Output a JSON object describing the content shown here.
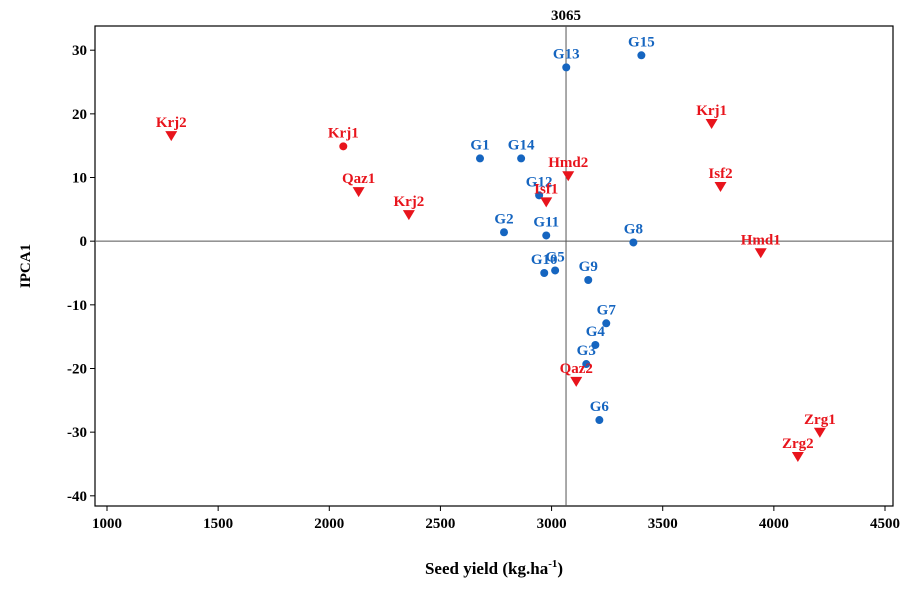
{
  "chart_data": {
    "type": "scatter",
    "xlabel": [
      "Seed yield (kg.ha",
      "-1",
      ")"
    ],
    "ylabel": "IPCA1",
    "xlim": [
      946,
      4536
    ],
    "xticks": [
      1000,
      1500,
      2000,
      2500,
      3000,
      3500,
      4000,
      4500
    ],
    "ylim": [
      -41.6,
      33.8
    ],
    "yticks": [
      -40,
      -30,
      -20,
      -10,
      0,
      10,
      20,
      30
    ],
    "vline": 3065,
    "hline": 0,
    "series": [
      {
        "color": "#1565c0",
        "marker": "circle",
        "labels": [
          "G15",
          "G13",
          "G1",
          "G14",
          "G12",
          "G2",
          "G11",
          "G8",
          "G5",
          "G10",
          "G9",
          "G7",
          "G4",
          "G3",
          "G6"
        ],
        "x": [
          3404,
          3066,
          2678,
          2863,
          2944,
          2786,
          2976,
          3368,
          3016,
          2967,
          3165,
          3246,
          3197,
          3156,
          3215
        ],
        "y": [
          29.2,
          27.3,
          13.0,
          13.0,
          7.2,
          1.4,
          0.9,
          -0.2,
          -4.6,
          -5.0,
          -6.1,
          -12.9,
          -16.3,
          -19.3,
          -28.1
        ]
      },
      {
        "color": "#e8141c",
        "marker": "triangle-down",
        "labels": [
          "Krj2",
          "Qaz1",
          "Krj2",
          "Hmd2",
          "Isf1",
          "Qaz2",
          "Krj1",
          "Isf2",
          "Hmd1",
          "Zrg1",
          "Zrg2"
        ],
        "x": [
          1289,
          2132,
          2358,
          3075,
          2976,
          3111,
          3720,
          3760,
          3941,
          4207,
          4108
        ],
        "y": [
          16.5,
          7.7,
          4.1,
          10.2,
          6.1,
          -22.1,
          18.4,
          8.5,
          -1.9,
          -30.1,
          -33.9
        ]
      },
      {
        "color": "#e8141c",
        "marker": "circle",
        "labels": [
          "Krj1"
        ],
        "x": [
          2063
        ],
        "y": [
          14.9
        ]
      }
    ]
  }
}
